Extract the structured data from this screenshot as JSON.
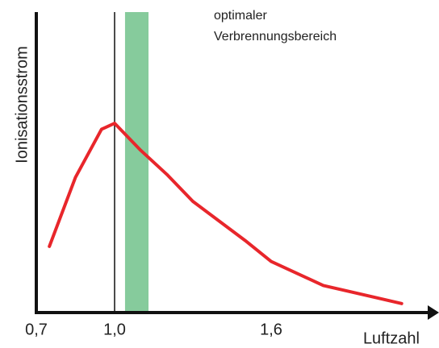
{
  "chart_data": {
    "type": "line",
    "y_label": "Ionisationsstrom",
    "x_label": "Luftzahl",
    "band_label": [
      "optimaler",
      "Verbrennungsbereich"
    ],
    "band": [
      1.04,
      1.13
    ],
    "band_color": "#86cb9c",
    "vline": 1.0,
    "x": [
      0.75,
      0.85,
      0.95,
      1.0,
      1.1,
      1.2,
      1.3,
      1.5,
      1.6,
      1.8,
      2.0,
      2.1
    ],
    "series": [
      {
        "name": "Ionisationsstrom",
        "color": "#e8262b",
        "values": [
          0.22,
          0.45,
          0.61,
          0.63,
          0.54,
          0.46,
          0.37,
          0.24,
          0.17,
          0.09,
          0.05,
          0.03
        ]
      }
    ],
    "xlim": [
      0.7,
      2.2
    ],
    "ylim": [
      0,
      1
    ],
    "xticks": [
      {
        "value": 0.7,
        "label": "0,7"
      },
      {
        "value": 1.0,
        "label": "1,0"
      },
      {
        "value": 1.6,
        "label": "1,6"
      }
    ]
  }
}
